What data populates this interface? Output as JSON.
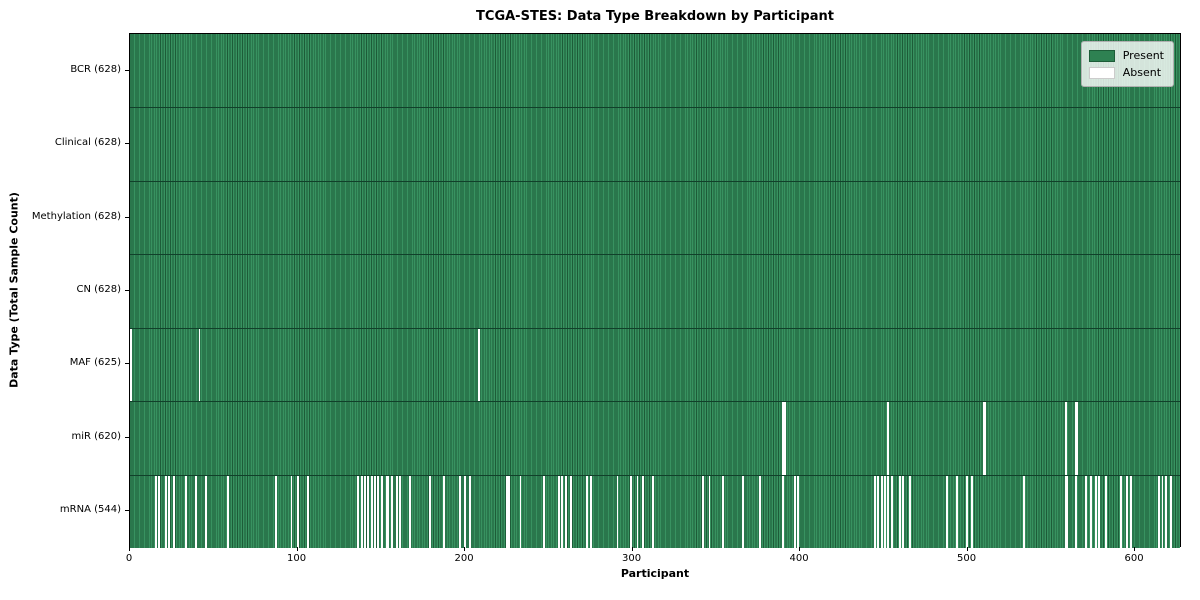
{
  "chart_data": {
    "type": "heatmap",
    "title": "TCGA-STES: Data Type Breakdown by Participant",
    "xlabel": "Participant",
    "ylabel": "Data Type (Total Sample Count)",
    "n_participants": 628,
    "xlim": [
      0,
      628
    ],
    "xticks": [
      0,
      100,
      200,
      300,
      400,
      500,
      600
    ],
    "grid": false,
    "legend": {
      "position": "upper right",
      "entries": [
        {
          "label": "Present",
          "color": "#2e8152",
          "border": "#1d5c38"
        },
        {
          "label": "Absent",
          "color": "#ffffff",
          "border": "#cccccc"
        }
      ]
    },
    "colors": {
      "present_fill": "#389260",
      "present_edge": "#1d5c38",
      "absent_fill": "#ffffff",
      "row_separator": "#11402a",
      "axis": "#000000"
    },
    "rows": [
      {
        "label": "BCR",
        "display": "BCR (628)",
        "present_count": 628,
        "absent_participants": []
      },
      {
        "label": "Clinical",
        "display": "Clinical (628)",
        "present_count": 628,
        "absent_participants": []
      },
      {
        "label": "Methylation",
        "display": "Methylation (628)",
        "present_count": 628,
        "absent_participants": []
      },
      {
        "label": "CN",
        "display": "CN (628)",
        "present_count": 628,
        "absent_participants": []
      },
      {
        "label": "MAF",
        "display": "MAF (625)",
        "present_count": 625,
        "absent_participants": [
          0,
          41,
          208
        ]
      },
      {
        "label": "miR",
        "display": "miR (620)",
        "present_count": 620,
        "absent_participants": [
          390,
          391,
          453,
          510,
          511,
          559,
          565,
          566
        ]
      },
      {
        "label": "mRNA",
        "display": "mRNA (544)",
        "present_count": 544,
        "absent_participants": [
          15,
          17,
          21,
          23,
          26,
          33,
          39,
          45,
          58,
          87,
          96,
          100,
          106,
          136,
          138,
          140,
          142,
          144,
          146,
          148,
          150,
          153,
          154,
          156,
          159,
          161,
          167,
          179,
          187,
          197,
          200,
          203,
          225,
          226,
          233,
          247,
          256,
          258,
          260,
          263,
          273,
          275,
          291,
          299,
          303,
          306,
          312,
          342,
          346,
          354,
          366,
          376,
          390,
          397,
          399,
          445,
          447,
          449,
          451,
          453,
          455,
          460,
          462,
          466,
          488,
          494,
          500,
          503,
          534,
          559,
          560,
          565,
          571,
          574,
          577,
          579,
          583,
          592,
          596,
          598,
          615,
          617,
          619,
          622
        ]
      }
    ]
  }
}
